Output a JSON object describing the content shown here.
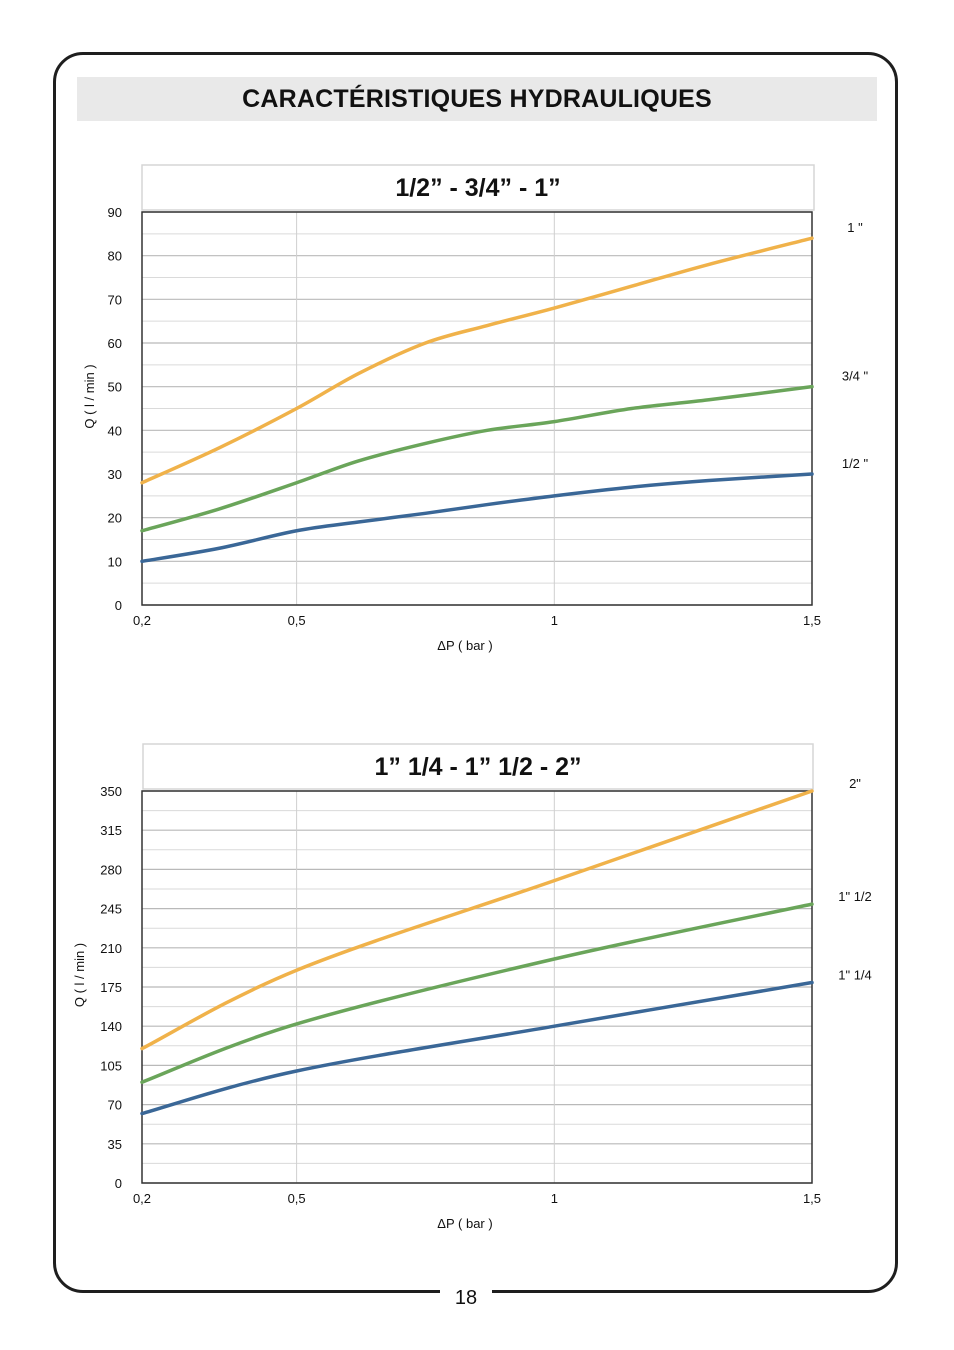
{
  "page": {
    "title": "CARACTÉRISTIQUES HYDRAULIQUES",
    "page_number": "18"
  },
  "colors": {
    "orange": "#f0b24a",
    "green": "#6aa55a",
    "blue": "#3a6797",
    "grid": "#c8c8c8",
    "axis": "#222222"
  },
  "chart_data": [
    {
      "type": "line",
      "title": "1/2”  -  3/4”  -  1”",
      "xlabel": "ΔP ( bar )",
      "ylabel": "Q ( l / min )",
      "xlim": [
        0.2,
        1.5
      ],
      "ylim": [
        0,
        90
      ],
      "x_ticks": [
        0.2,
        0.5,
        1,
        1.5
      ],
      "x_tick_labels": [
        "0,2",
        "0,5",
        "1",
        "1,5"
      ],
      "y_ticks": [
        0,
        10,
        20,
        30,
        40,
        50,
        60,
        70,
        80,
        90
      ],
      "y_tick_labels": [
        "0",
        "10",
        "20",
        "30",
        "40",
        "50",
        "60",
        "70",
        "80",
        "90"
      ],
      "grid": true,
      "series": [
        {
          "name": "1 \"",
          "color": "#f0b24a",
          "x": [
            0.2,
            0.35,
            0.5,
            0.62,
            0.75,
            0.87,
            1.0,
            1.15,
            1.3,
            1.5
          ],
          "values": [
            28,
            36,
            45,
            53,
            60,
            64,
            68,
            73,
            78,
            84
          ]
        },
        {
          "name": "3/4 \"",
          "color": "#6aa55a",
          "x": [
            0.2,
            0.35,
            0.5,
            0.62,
            0.75,
            0.87,
            1.0,
            1.15,
            1.3,
            1.5
          ],
          "values": [
            17,
            22,
            28,
            33,
            37,
            40,
            42,
            45,
            47,
            50
          ]
        },
        {
          "name": "1/2 \"",
          "color": "#3a6797",
          "x": [
            0.2,
            0.35,
            0.5,
            0.62,
            0.75,
            0.87,
            1.0,
            1.15,
            1.3,
            1.5
          ],
          "values": [
            10,
            13,
            17,
            19,
            21,
            23,
            25,
            27,
            28.5,
            30
          ]
        }
      ]
    },
    {
      "type": "line",
      "title": "1” 1/4  -  1” 1/2  -  2”",
      "xlabel": "ΔP ( bar )",
      "ylabel": "Q ( l / min )",
      "xlim": [
        0.2,
        1.5
      ],
      "ylim": [
        0,
        350
      ],
      "x_ticks": [
        0.2,
        0.5,
        1,
        1.5
      ],
      "x_tick_labels": [
        "0,2",
        "0,5",
        "1",
        "1,5"
      ],
      "y_ticks": [
        0,
        35,
        70,
        105,
        140,
        175,
        210,
        245,
        280,
        315,
        350
      ],
      "y_tick_labels": [
        "0",
        "35",
        "70",
        "105",
        "140",
        "175",
        "210",
        "245",
        "280",
        "315",
        "350"
      ],
      "grid": true,
      "series": [
        {
          "name": "2\"",
          "color": "#f0b24a",
          "x": [
            0.2,
            0.5,
            1.0,
            1.5
          ],
          "values": [
            120,
            190,
            270,
            350
          ]
        },
        {
          "name": "1\" 1/2",
          "color": "#6aa55a",
          "x": [
            0.2,
            0.5,
            1.0,
            1.5
          ],
          "values": [
            90,
            142,
            200,
            249
          ]
        },
        {
          "name": "1\" 1/4",
          "color": "#3a6797",
          "x": [
            0.2,
            0.5,
            1.0,
            1.5
          ],
          "values": [
            62,
            100,
            140,
            179
          ]
        }
      ]
    }
  ]
}
